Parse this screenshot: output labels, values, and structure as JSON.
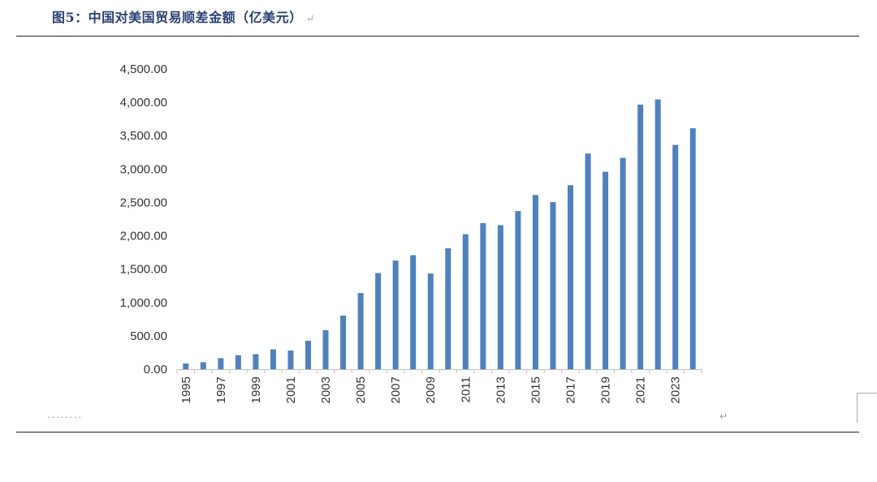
{
  "caption": {
    "text": "图5：中国对美国贸易顺差金额（亿美元）",
    "return_mark": "↵"
  },
  "footer": {
    "dots": "........",
    "return_mark": "↵"
  },
  "colors": {
    "bar": "#4f81bd",
    "caption": "#2a3f73"
  },
  "chart_data": {
    "type": "bar",
    "title": "",
    "xlabel": "",
    "ylabel": "",
    "ylim": [
      0,
      4500
    ],
    "yticks": [
      0,
      500,
      1000,
      1500,
      2000,
      2500,
      3000,
      3500,
      4000,
      4500
    ],
    "ytick_labels": [
      "0.00",
      "500.00",
      "1,000.00",
      "1,500.00",
      "2,000.00",
      "2,500.00",
      "3,000.00",
      "3,500.00",
      "4,000.00",
      "4,500.00"
    ],
    "categories": [
      "1995",
      "1996",
      "1997",
      "1998",
      "1999",
      "2000",
      "2001",
      "2002",
      "2003",
      "2004",
      "2005",
      "2006",
      "2007",
      "2008",
      "2009",
      "2010",
      "2011",
      "2012",
      "2013",
      "2014",
      "2015",
      "2016",
      "2017",
      "2018",
      "2019",
      "2020",
      "2021",
      "2022",
      "2023",
      "2024"
    ],
    "xtick_labels": [
      "1995",
      "1997",
      "1999",
      "2001",
      "2003",
      "2005",
      "2007",
      "2009",
      "2011",
      "2013",
      "2015",
      "2017",
      "2019",
      "2021",
      "2023"
    ],
    "values": [
      86,
      105,
      165,
      210,
      225,
      297,
      280,
      427,
      586,
      804,
      1142,
      1442,
      1628,
      1709,
      1434,
      1812,
      2024,
      2189,
      2159,
      2370,
      2611,
      2505,
      2758,
      3233,
      2960,
      3168,
      3966,
      4044,
      3361,
      3612
    ],
    "legend": "none",
    "grid": false
  }
}
